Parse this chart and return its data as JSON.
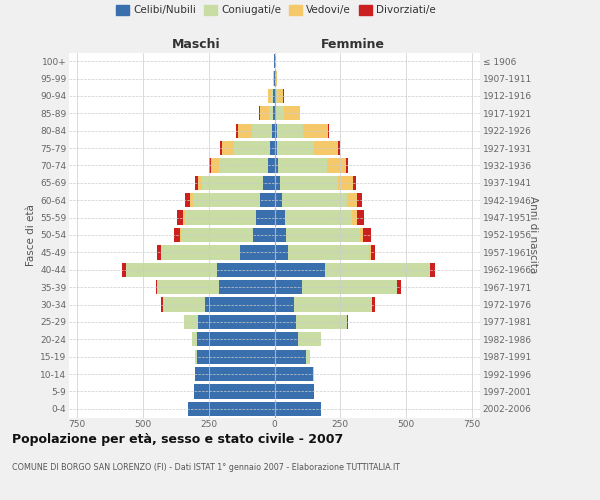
{
  "age_groups": [
    "0-4",
    "5-9",
    "10-14",
    "15-19",
    "20-24",
    "25-29",
    "30-34",
    "35-39",
    "40-44",
    "45-49",
    "50-54",
    "55-59",
    "60-64",
    "65-69",
    "70-74",
    "75-79",
    "80-84",
    "85-89",
    "90-94",
    "95-99",
    "100+"
  ],
  "birth_years": [
    "2002-2006",
    "1997-2001",
    "1992-1996",
    "1987-1991",
    "1982-1986",
    "1977-1981",
    "1972-1976",
    "1967-1971",
    "1962-1966",
    "1957-1961",
    "1952-1956",
    "1947-1951",
    "1942-1946",
    "1937-1941",
    "1932-1936",
    "1927-1931",
    "1922-1926",
    "1917-1921",
    "1912-1916",
    "1907-1911",
    "≤ 1906"
  ],
  "colors": {
    "celibi": "#3a6fad",
    "coniugati": "#c8dca4",
    "vedovi": "#f5c96a",
    "divorziati": "#cc2020"
  },
  "maschi": {
    "celibi": [
      330,
      305,
      300,
      295,
      295,
      290,
      265,
      210,
      220,
      130,
      80,
      70,
      55,
      45,
      25,
      18,
      10,
      5,
      5,
      3,
      2
    ],
    "coniugati": [
      0,
      0,
      0,
      5,
      20,
      55,
      160,
      235,
      345,
      300,
      275,
      270,
      255,
      230,
      185,
      135,
      75,
      15,
      8,
      2,
      0
    ],
    "vedovi": [
      0,
      0,
      0,
      0,
      0,
      0,
      0,
      0,
      0,
      0,
      5,
      8,
      12,
      15,
      30,
      45,
      55,
      35,
      12,
      2,
      0
    ],
    "divorziati": [
      0,
      0,
      0,
      0,
      0,
      0,
      5,
      5,
      12,
      15,
      22,
      22,
      18,
      12,
      10,
      8,
      5,
      2,
      1,
      0,
      0
    ]
  },
  "femmine": {
    "celibi": [
      175,
      150,
      145,
      120,
      90,
      80,
      75,
      105,
      190,
      50,
      45,
      38,
      30,
      22,
      15,
      10,
      8,
      5,
      4,
      2,
      1
    ],
    "coniugati": [
      0,
      0,
      5,
      15,
      85,
      195,
      295,
      360,
      400,
      310,
      280,
      255,
      245,
      220,
      185,
      140,
      100,
      30,
      10,
      2,
      0
    ],
    "vedovi": [
      0,
      0,
      0,
      0,
      0,
      0,
      0,
      0,
      0,
      5,
      12,
      22,
      38,
      55,
      70,
      90,
      95,
      60,
      20,
      4,
      0
    ],
    "divorziati": [
      0,
      0,
      0,
      0,
      0,
      5,
      10,
      14,
      18,
      15,
      28,
      26,
      18,
      14,
      10,
      8,
      5,
      2,
      2,
      0,
      0
    ]
  },
  "xlim": 780,
  "title": "Popolazione per età, sesso e stato civile - 2007",
  "subtitle": "COMUNE DI BORGO SAN LORENZO (FI) - Dati ISTAT 1° gennaio 2007 - Elaborazione TUTTITALIA.IT",
  "xlabel_left": "Maschi",
  "xlabel_right": "Femmine",
  "ylabel_left": "Fasce di età",
  "ylabel_right": "Anni di nascita",
  "legend_labels": [
    "Celibi/Nubili",
    "Coniugati/e",
    "Vedovi/e",
    "Divorziati/e"
  ],
  "bg_color": "#f0f0f0",
  "plot_bg": "#ffffff",
  "xtick_values": [
    -750,
    -500,
    -250,
    0,
    250,
    500,
    750
  ],
  "xtick_labels": [
    "750",
    "500",
    "250",
    "0",
    "250",
    "500",
    "750"
  ]
}
